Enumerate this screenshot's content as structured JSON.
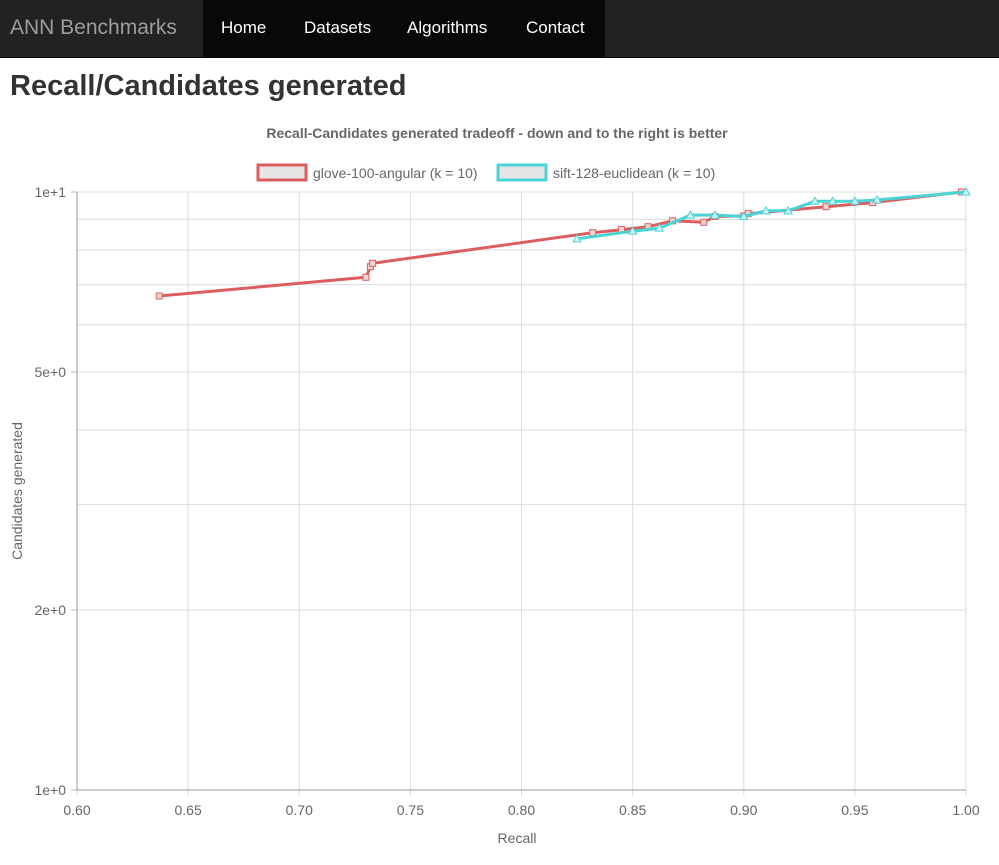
{
  "navbar": {
    "brand": "ANN Benchmarks",
    "items": [
      {
        "label": "Home"
      },
      {
        "label": "Datasets"
      },
      {
        "label": "Algorithms"
      },
      {
        "label": "Contact"
      }
    ]
  },
  "page": {
    "title": "Recall/Candidates generated"
  },
  "colors": {
    "navbar_bg": "#222222",
    "nav_bg": "#080808",
    "glove": "#dd5d5f",
    "sift": "#4ad4d6"
  },
  "chart_data": {
    "type": "line",
    "title": "Recall-Candidates generated tradeoff - down and to the right is better",
    "xlabel": "Recall",
    "ylabel": "Candidates generated",
    "xlim": [
      0.6,
      1.0
    ],
    "ylim": [
      1,
      10
    ],
    "yscale": "log",
    "grid": true,
    "legend_position": "top",
    "x_ticks": [
      "0.60",
      "0.65",
      "0.70",
      "0.75",
      "0.80",
      "0.85",
      "0.90",
      "0.95",
      "1.00"
    ],
    "y_ticks": [
      {
        "value": 10,
        "label": "1e+1"
      },
      {
        "value": 5,
        "label": "5e+0"
      },
      {
        "value": 2,
        "label": "2e+0"
      },
      {
        "value": 1,
        "label": "1e+0"
      }
    ],
    "series": [
      {
        "name": "glove-100-angular (k = 10)",
        "color": "#dd5d5f",
        "marker": "square",
        "points": [
          [
            0.637,
            6.7
          ],
          [
            0.73,
            7.2
          ],
          [
            0.732,
            7.5
          ],
          [
            0.733,
            7.6
          ],
          [
            0.832,
            8.55
          ],
          [
            0.845,
            8.65
          ],
          [
            0.857,
            8.75
          ],
          [
            0.868,
            8.95
          ],
          [
            0.882,
            8.9
          ],
          [
            0.887,
            9.1
          ],
          [
            0.9,
            9.12
          ],
          [
            0.902,
            9.2
          ],
          [
            0.937,
            9.45
          ],
          [
            0.958,
            9.6
          ],
          [
            0.998,
            10.0
          ]
        ]
      },
      {
        "name": "sift-128-euclidean (k = 10)",
        "color": "#4ad4d6",
        "marker": "triangle",
        "points": [
          [
            0.825,
            8.35
          ],
          [
            0.85,
            8.6
          ],
          [
            0.862,
            8.7
          ],
          [
            0.876,
            9.15
          ],
          [
            0.887,
            9.15
          ],
          [
            0.9,
            9.1
          ],
          [
            0.91,
            9.3
          ],
          [
            0.92,
            9.3
          ],
          [
            0.932,
            9.65
          ],
          [
            0.94,
            9.65
          ],
          [
            0.95,
            9.65
          ],
          [
            0.96,
            9.7
          ],
          [
            1.0,
            10.0
          ]
        ]
      }
    ]
  }
}
